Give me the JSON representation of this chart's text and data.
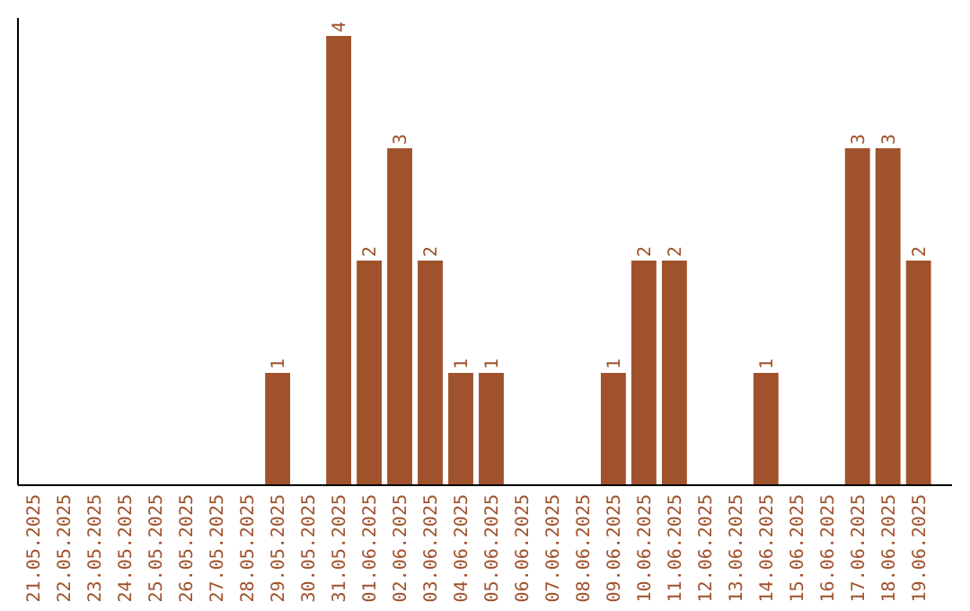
{
  "chart_data": {
    "type": "bar",
    "categories": [
      "21.05.2025",
      "22.05.2025",
      "23.05.2025",
      "24.05.2025",
      "25.05.2025",
      "26.05.2025",
      "27.05.2025",
      "28.05.2025",
      "29.05.2025",
      "30.05.2025",
      "31.05.2025",
      "01.06.2025",
      "02.06.2025",
      "03.06.2025",
      "04.06.2025",
      "05.06.2025",
      "06.06.2025",
      "07.06.2025",
      "08.06.2025",
      "09.06.2025",
      "10.06.2025",
      "11.06.2025",
      "12.06.2025",
      "13.06.2025",
      "14.06.2025",
      "15.06.2025",
      "16.06.2025",
      "17.06.2025",
      "18.06.2025",
      "19.06.2025"
    ],
    "values": [
      0,
      0,
      0,
      0,
      0,
      0,
      0,
      0,
      1,
      0,
      4,
      2,
      3,
      2,
      1,
      1,
      0,
      0,
      0,
      1,
      2,
      2,
      0,
      0,
      1,
      0,
      0,
      3,
      3,
      2
    ],
    "value_labels": [
      null,
      null,
      null,
      null,
      null,
      null,
      null,
      null,
      "1",
      null,
      "4",
      "2",
      "3",
      "2",
      "1",
      "1",
      null,
      null,
      null,
      "1",
      "2",
      "2",
      null,
      null,
      "1",
      null,
      null,
      "3",
      "3",
      "2"
    ],
    "color": "#a0522d"
  }
}
